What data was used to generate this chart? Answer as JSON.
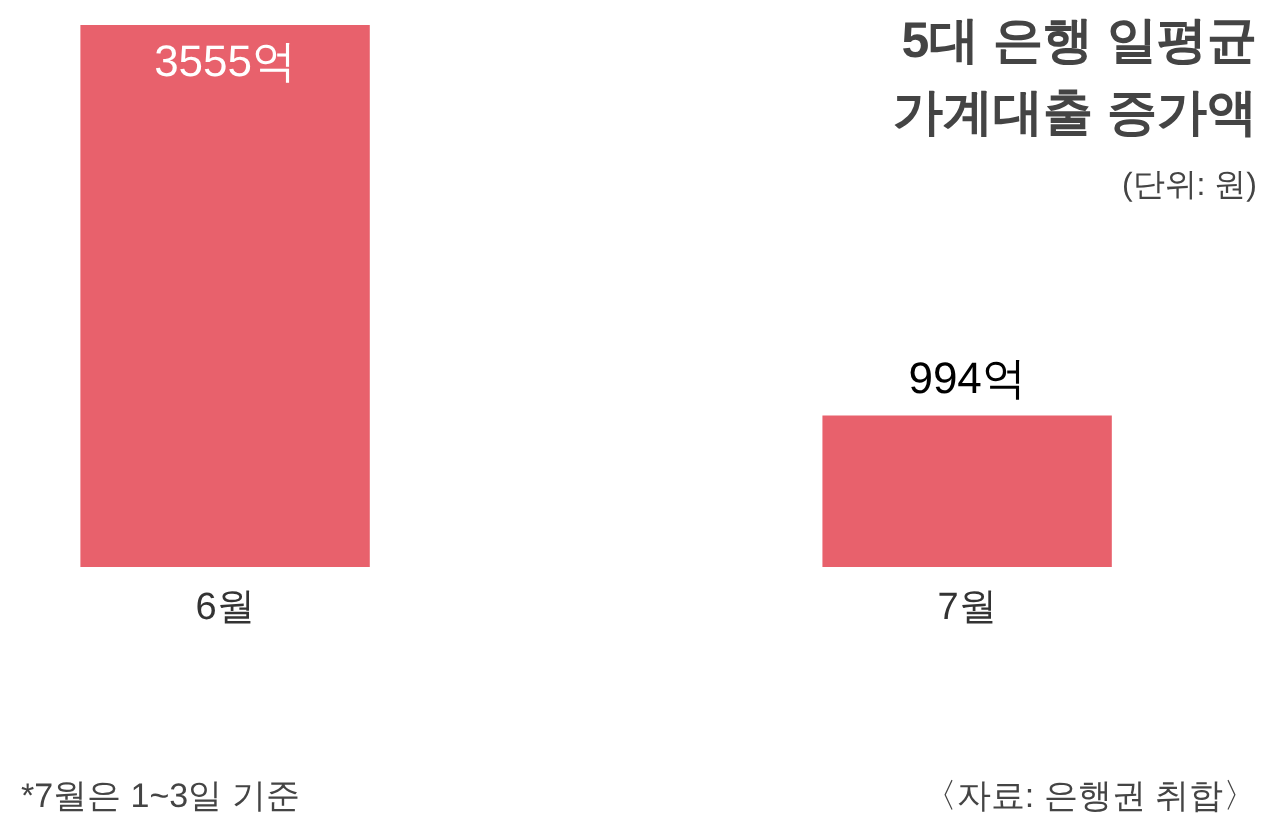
{
  "chart_data": {
    "type": "bar",
    "title": "5대 은행 일평균 가계대출 증가액",
    "subtitle": "(단위: 원)",
    "categories": [
      "6월",
      "7월"
    ],
    "values": [
      3555,
      994
    ],
    "value_labels": [
      "3555억",
      "994억"
    ],
    "color": "#e8616c",
    "annotations": [
      "*7월은 1~3일 기준",
      "〈자료: 은행권 취합〉"
    ]
  }
}
